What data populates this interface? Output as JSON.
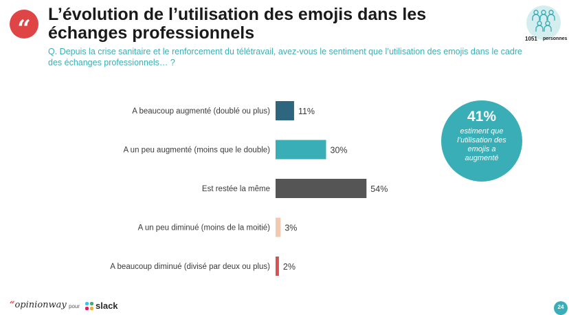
{
  "header": {
    "quote_icon": "quote-marks-icon",
    "title": "L’évolution de l’utilisation des emojis dans les échanges professionnels",
    "question": "Q. Depuis la crise sanitaire et le renforcement du télétravail, avez-vous le sentiment que l’utilisation des emojis dans le cadre des échanges professionnels… ?"
  },
  "sample": {
    "icon": "people-group-icon",
    "count": "1051",
    "unit": "personnes"
  },
  "chart_data": {
    "type": "bar",
    "orientation": "horizontal",
    "categories": [
      "A beaucoup augmenté (doublé ou plus)",
      "A un peu augmenté (moins que le double)",
      "Est restée la même",
      "A un peu diminué (moins de la moitié)",
      "A beaucoup diminué (divisé par deux ou plus)"
    ],
    "values": [
      11,
      30,
      54,
      3,
      2
    ],
    "value_labels": [
      "11%",
      "30%",
      "54%",
      "3%",
      "2%"
    ],
    "colors": [
      "#2e6680",
      "#3aaeb6",
      "#555555",
      "#f3c9ae",
      "#d94f52"
    ],
    "xlim": [
      0,
      100
    ]
  },
  "callout": {
    "value": "41%",
    "text": "estiment que l’utilisation des emojis a augmenté"
  },
  "footer": {
    "brand_mark": "“",
    "brand": "opinionway",
    "for": "pour",
    "partner_icon": "slack-logo-icon",
    "partner": "slack",
    "page_number": "24"
  },
  "colors": {
    "accent_teal": "#3aaeb6",
    "accent_red": "#e04545",
    "dark_blue": "#2e6680"
  }
}
